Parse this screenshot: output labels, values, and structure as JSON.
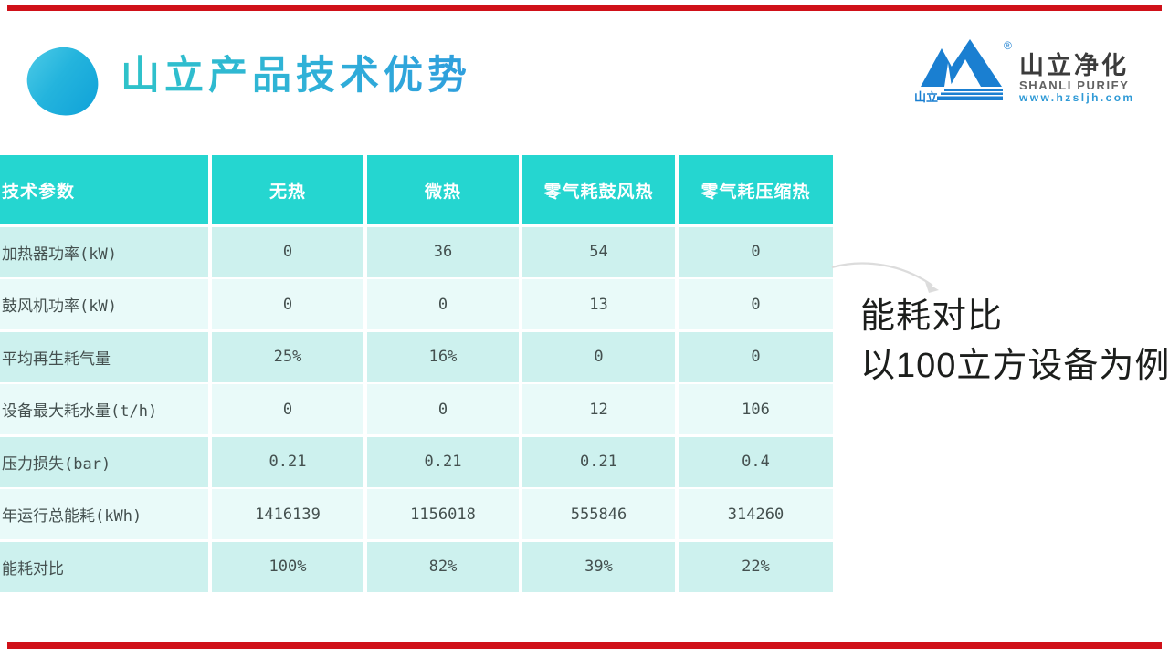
{
  "slide": {
    "title": "山立产品技术优势",
    "accent_color": "#d01119"
  },
  "logo": {
    "mark_label": "山立",
    "registered_mark": "®",
    "company_cn": "山立净化",
    "company_en": "SHANLI PURIFY",
    "website": "www.hzsljh.com",
    "brand_blue": "#1a7fd1"
  },
  "table": {
    "header_bg": "#25d6d0",
    "row_bg_dark": "#cdf1ee",
    "row_bg_light": "#e9faf9",
    "columns": [
      "技术参数",
      "无热",
      "微热",
      "零气耗鼓风热",
      "零气耗压缩热"
    ],
    "rows": [
      {
        "label": "加热器功率(kW)",
        "values": [
          "0",
          "36",
          "54",
          "0"
        ]
      },
      {
        "label": "鼓风机功率(kW)",
        "values": [
          "0",
          "0",
          "13",
          "0"
        ]
      },
      {
        "label": "平均再生耗气量",
        "values": [
          "25%",
          "16%",
          "0",
          "0"
        ]
      },
      {
        "label": "设备最大耗水量(t/h)",
        "values": [
          "0",
          "0",
          "12",
          "106"
        ]
      },
      {
        "label": "压力损失(bar)",
        "values": [
          "0.21",
          "0.21",
          "0.21",
          "0.4"
        ]
      },
      {
        "label": "年运行总能耗(kWh)",
        "values": [
          "1416139",
          "1156018",
          "555846",
          "314260"
        ]
      },
      {
        "label": "能耗对比",
        "values": [
          "100%",
          "82%",
          "39%",
          "22%"
        ]
      }
    ]
  },
  "annotation": {
    "line1": "能耗对比",
    "line2": "以100立方设备为例"
  }
}
